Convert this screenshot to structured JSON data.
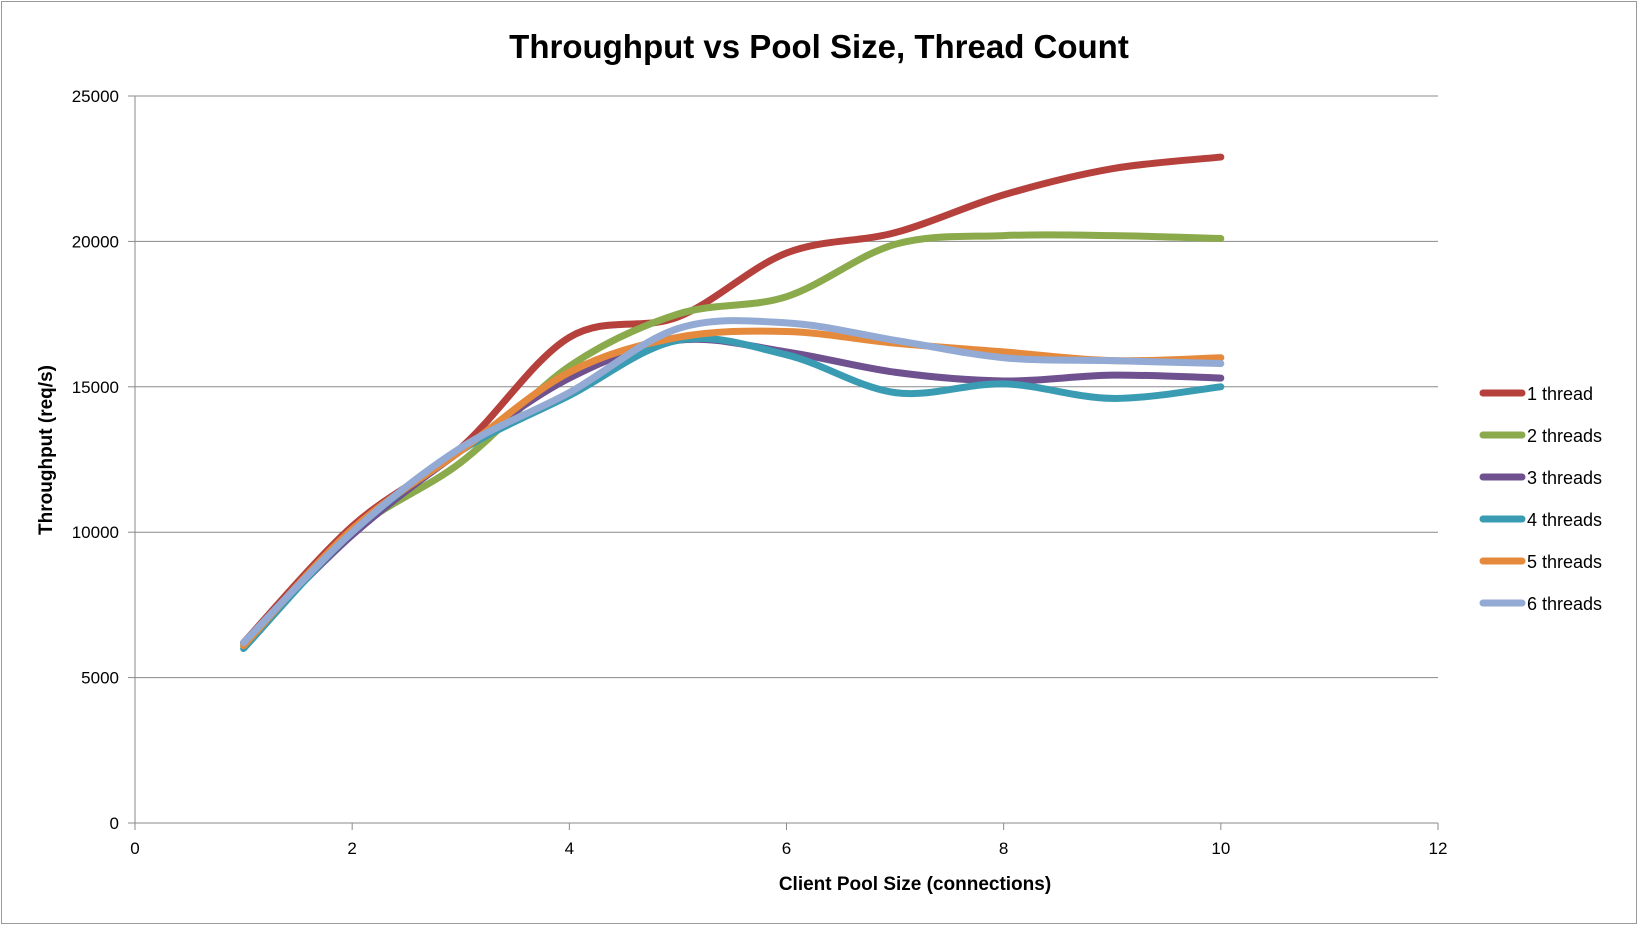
{
  "chart_data": {
    "type": "line",
    "title": "Throughput vs Pool Size, Thread Count",
    "xlabel": "Client Pool Size (connections)",
    "ylabel": "Throughput (req/s)",
    "xlim": [
      0,
      12
    ],
    "ylim": [
      0,
      25000
    ],
    "x_ticks": [
      "0",
      "2",
      "4",
      "6",
      "8",
      "10",
      "12"
    ],
    "y_ticks": [
      "0",
      "5000",
      "10000",
      "15000",
      "20000",
      "25000"
    ],
    "grid": "horizontal",
    "legend_position": "right",
    "smoothed": true,
    "x": [
      1,
      2,
      3,
      4,
      5,
      6,
      7,
      8,
      9,
      10
    ],
    "series": [
      {
        "name": "1 thread",
        "color": "#b5403c",
        "values": [
          6200,
          10200,
          12900,
          16700,
          17400,
          19600,
          20300,
          21600,
          22500,
          22900
        ]
      },
      {
        "name": "2 threads",
        "color": "#8aaa4c",
        "values": [
          6100,
          10000,
          12400,
          15700,
          17500,
          18100,
          19900,
          20200,
          20200,
          20100
        ]
      },
      {
        "name": "3 threads",
        "color": "#6f5190",
        "values": [
          6200,
          9900,
          12800,
          15300,
          16600,
          16200,
          15500,
          15200,
          15400,
          15300
        ]
      },
      {
        "name": "4 threads",
        "color": "#3a9cb2",
        "values": [
          6000,
          10000,
          12800,
          14700,
          16600,
          16100,
          14800,
          15100,
          14600,
          15000
        ]
      },
      {
        "name": "5 threads",
        "color": "#e58a3c",
        "values": [
          6100,
          10100,
          12800,
          15500,
          16700,
          16900,
          16500,
          16200,
          15900,
          16000
        ]
      },
      {
        "name": "6 threads",
        "color": "#93aad4",
        "values": [
          6200,
          10000,
          12900,
          14800,
          17000,
          17200,
          16600,
          16000,
          15900,
          15800
        ]
      }
    ]
  }
}
